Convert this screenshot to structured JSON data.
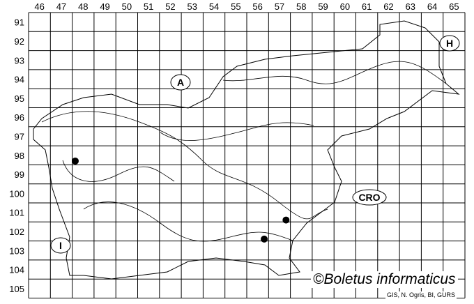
{
  "map": {
    "columns": [
      "46",
      "47",
      "48",
      "49",
      "50",
      "51",
      "52",
      "53",
      "54",
      "55",
      "56",
      "57",
      "58",
      "59",
      "60",
      "61",
      "62",
      "63",
      "64",
      "65"
    ],
    "rows": [
      "91",
      "92",
      "93",
      "94",
      "95",
      "96",
      "97",
      "98",
      "99",
      "100",
      "101",
      "102",
      "103",
      "104",
      "105"
    ],
    "points": [
      {
        "col": "48",
        "row": "98"
      },
      {
        "col": "57",
        "row": "101"
      },
      {
        "col": "56",
        "row": "102"
      }
    ],
    "country_labels": [
      {
        "id": "austria",
        "text": "A"
      },
      {
        "id": "hungary",
        "text": "H"
      },
      {
        "id": "croatia",
        "text": "CRO"
      },
      {
        "id": "italy",
        "text": "I"
      }
    ],
    "point_color": "#000000"
  },
  "footer": {
    "copyright": "©Boletus informaticus",
    "credit": "GIS, N. Ogris, BI, GURS"
  }
}
